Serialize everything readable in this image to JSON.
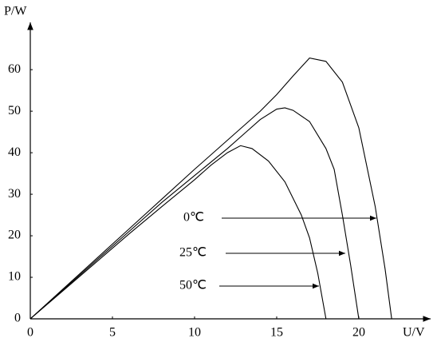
{
  "chart_data": {
    "type": "line",
    "xlabel": "U/V",
    "ylabel": "P/W",
    "xlim": [
      0,
      24.4
    ],
    "ylim": [
      0,
      71
    ],
    "xticks": [
      0,
      5,
      10,
      15,
      20
    ],
    "yticks": [
      0,
      10,
      20,
      30,
      40,
      50,
      60
    ],
    "series": [
      {
        "name": "0℃",
        "color": "#000000",
        "x": [
          0,
          2,
          4,
          6,
          8,
          10,
          12,
          14,
          15,
          16,
          17,
          18,
          19,
          20,
          21,
          21.6,
          22
        ],
        "values": [
          0,
          7.2,
          14.4,
          21.6,
          28.8,
          36,
          43,
          50,
          54,
          58.5,
          62.8,
          62,
          57,
          46,
          27,
          12,
          0
        ]
      },
      {
        "name": "25℃",
        "color": "#000000",
        "x": [
          0,
          2,
          4,
          6,
          8,
          10,
          12,
          13,
          14,
          15,
          15.5,
          16,
          17,
          18,
          18.5,
          19,
          19.5,
          20
        ],
        "values": [
          0,
          7,
          14,
          21,
          28,
          34.5,
          41,
          44.5,
          48,
          50.5,
          50.8,
          50.2,
          47.5,
          41,
          36,
          25,
          13,
          0
        ]
      },
      {
        "name": "50℃",
        "color": "#000000",
        "x": [
          0,
          2,
          4,
          6,
          8,
          10,
          11,
          12,
          12.8,
          13.5,
          14.5,
          15.5,
          16.5,
          17,
          17.5,
          18
        ],
        "values": [
          0,
          6.8,
          13.6,
          20.4,
          27,
          33.5,
          37,
          40,
          41.7,
          41,
          38,
          33,
          25,
          19.5,
          11,
          0
        ]
      }
    ]
  }
}
